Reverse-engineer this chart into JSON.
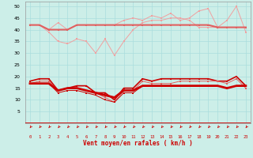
{
  "xlabel": "Vent moyen/en rafales ( km/h )",
  "x": [
    0,
    1,
    2,
    3,
    4,
    5,
    6,
    7,
    8,
    9,
    10,
    11,
    12,
    13,
    14,
    15,
    16,
    17,
    18,
    19,
    20,
    21,
    22,
    23
  ],
  "line1": [
    42,
    42,
    40,
    43,
    40,
    42,
    42,
    42,
    42,
    42,
    44,
    45,
    44,
    46,
    45,
    47,
    44,
    45,
    48,
    49,
    41,
    44,
    50,
    39
  ],
  "line2": [
    42,
    42,
    39,
    35,
    34,
    36,
    35,
    30,
    36,
    29,
    35,
    40,
    43,
    44,
    44,
    45,
    45,
    44,
    41,
    41,
    41,
    41,
    41,
    41
  ],
  "line3": [
    42,
    42,
    40,
    40,
    40,
    42,
    42,
    42,
    42,
    42,
    42,
    42,
    42,
    42,
    42,
    42,
    42,
    42,
    42,
    42,
    41,
    41,
    41,
    41
  ],
  "line4": [
    18,
    19,
    19,
    14,
    15,
    16,
    16,
    13,
    13,
    10,
    15,
    15,
    19,
    18,
    19,
    19,
    19,
    19,
    19,
    19,
    18,
    18,
    20,
    16
  ],
  "line5": [
    17,
    18,
    18,
    14,
    15,
    15,
    14,
    13,
    11,
    9,
    14,
    14,
    18,
    17,
    17,
    17,
    18,
    18,
    18,
    18,
    18,
    17,
    19,
    15
  ],
  "line6": [
    17,
    17,
    17,
    13,
    14,
    14,
    13,
    12,
    10,
    9,
    13,
    13,
    16,
    16,
    16,
    16,
    16,
    16,
    16,
    16,
    16,
    15,
    16,
    16
  ],
  "line7": [
    17,
    17,
    17,
    14,
    15,
    15,
    14,
    13,
    12,
    11,
    14,
    14,
    16,
    16,
    16,
    16,
    16,
    16,
    16,
    16,
    16,
    15,
    16,
    16
  ],
  "color_light": "#f0a0a0",
  "color_medium": "#e06060",
  "color_dark": "#cc0000",
  "color_flat": "#dd2020",
  "bg_color": "#cceee8",
  "grid_color": "#aadddd",
  "ylim": [
    0,
    52
  ],
  "yticks": [
    5,
    10,
    15,
    20,
    25,
    30,
    35,
    40,
    45,
    50
  ]
}
